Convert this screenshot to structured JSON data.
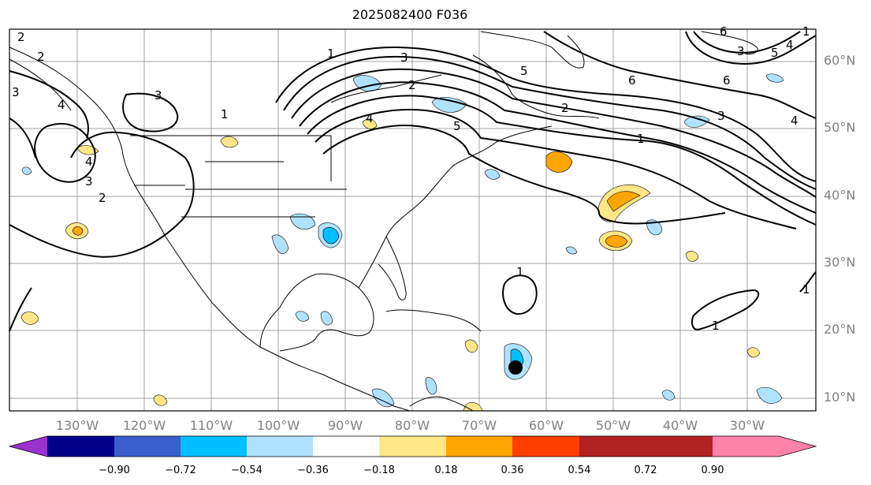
{
  "title": "2025082400 F036",
  "lat_labels": [
    "60°N",
    "50°N",
    "40°N",
    "30°N",
    "20°N",
    "10°N"
  ],
  "lon_labels": [
    "130°W",
    "120°W",
    "110°W",
    "100°W",
    "90°W",
    "80°W",
    "70°W",
    "60°W",
    "50°W",
    "40°W",
    "30°W"
  ],
  "colorbar": {
    "ticks": [
      "−0.90",
      "−0.72",
      "−0.54",
      "−0.36",
      "−0.18",
      "0.18",
      "0.36",
      "0.54",
      "0.72",
      "0.90"
    ],
    "colors": [
      "#9a32cd",
      "#00008b",
      "#3a5fcd",
      "#00bfff",
      "#b0e2ff",
      "#ffffff",
      "#ffe788",
      "#ffa500",
      "#ff3e00",
      "#b22222",
      "#ff82ab"
    ]
  },
  "contour_labels": [
    "2",
    "2",
    "3",
    "4",
    "3",
    "1",
    "4",
    "3",
    "2",
    "1",
    "3",
    "2",
    "4",
    "5",
    "6",
    "2",
    "3",
    "4",
    "1",
    "6",
    "5",
    "6",
    "3",
    "4",
    "5",
    "1",
    "1",
    "1",
    "1"
  ],
  "markers": [
    {
      "name": "storm-center",
      "lon": -65.5,
      "lat": 14.5
    }
  ]
}
